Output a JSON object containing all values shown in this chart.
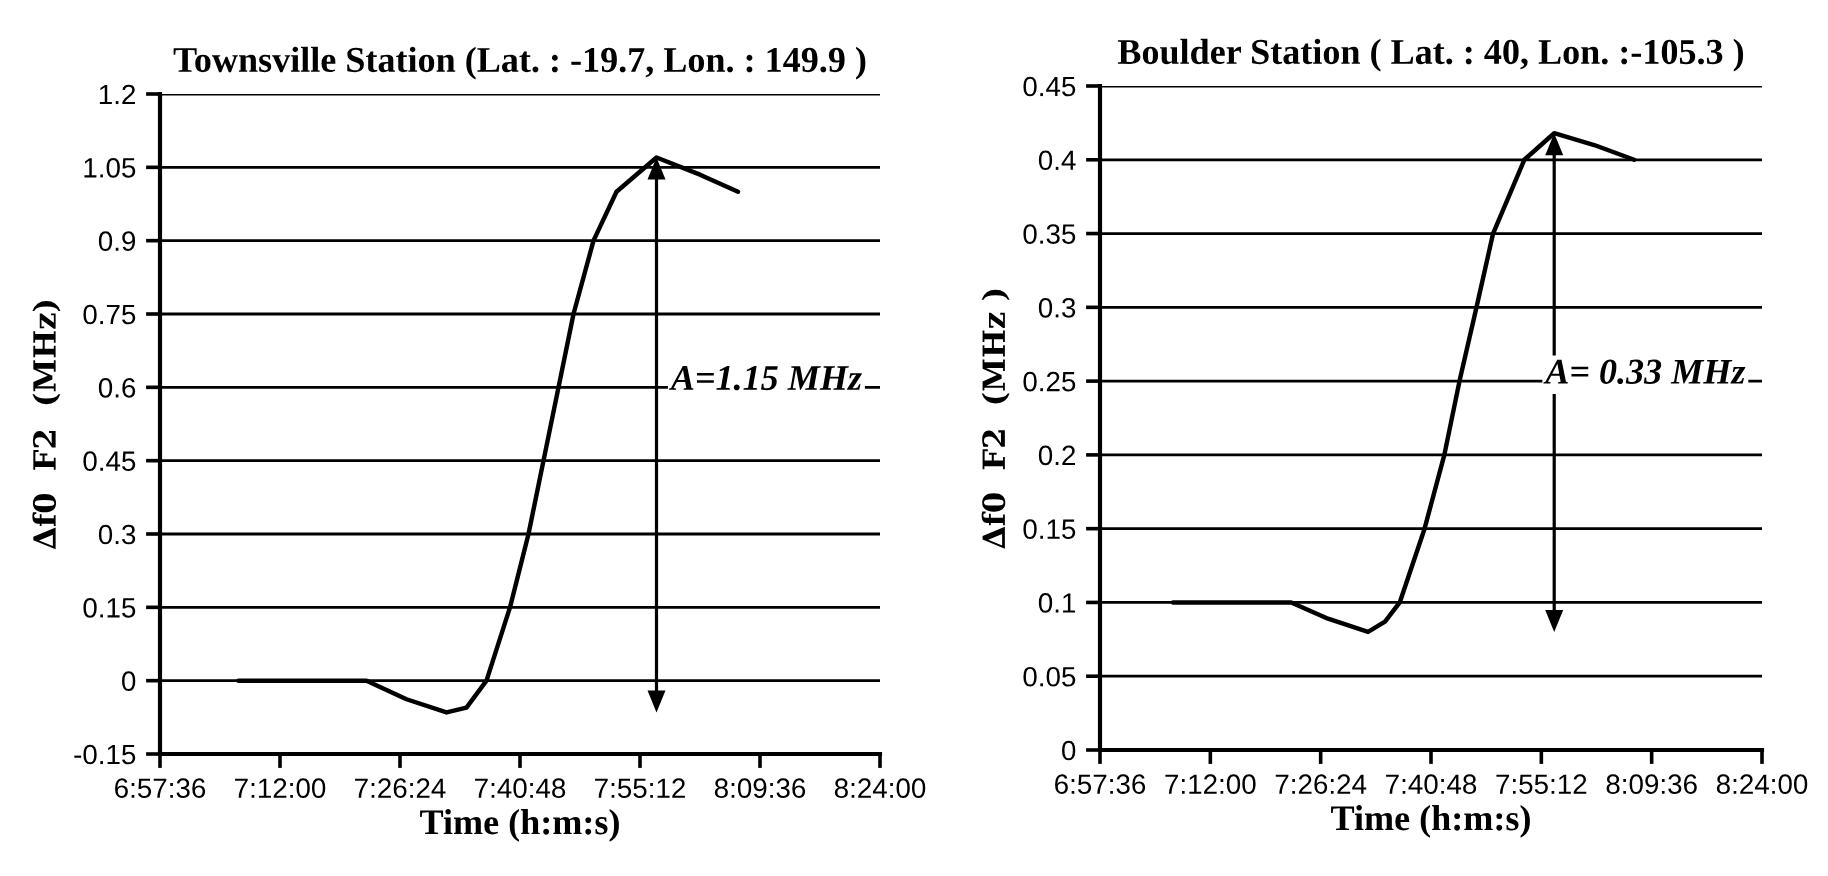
{
  "chart_data": [
    {
      "type": "line",
      "title": "Townsville Station (Lat. : -19.7, Lon. : 149.9 )",
      "xlabel": "Time (h:m:s)",
      "ylabel": "∆f0  F2  (MHz)",
      "series": [
        {
          "color": "#000000",
          "x": [
            7.117,
            7.25,
            7.373,
            7.453,
            7.533,
            7.573,
            7.613,
            7.66,
            7.697,
            7.727,
            7.757,
            7.787,
            7.827,
            7.873,
            7.953,
            8.04,
            8.116
          ],
          "values": [
            0,
            0,
            0,
            -0.038,
            -0.065,
            -0.055,
            0,
            0.15,
            0.3,
            0.45,
            0.6,
            0.75,
            0.9,
            1.0,
            1.07,
            1.035,
            1.0
          ]
        }
      ],
      "xlim": [
        6.96,
        8.4
      ],
      "xticks": [
        {
          "value": 6.96,
          "label": "6:57:36"
        },
        {
          "value": 7.2,
          "label": "7:12:00"
        },
        {
          "value": 7.44,
          "label": "7:26:24"
        },
        {
          "value": 7.68,
          "label": "7:40:48"
        },
        {
          "value": 7.92,
          "label": "7:55:12"
        },
        {
          "value": 8.16,
          "label": "8:09:36"
        },
        {
          "value": 8.4,
          "label": "8:24:00"
        }
      ],
      "ylim": [
        -0.15,
        1.2
      ],
      "yticks": [
        -0.15,
        0,
        0.15,
        0.3,
        0.45,
        0.6,
        0.75,
        0.9,
        1.05,
        1.2
      ],
      "grid": "y",
      "marker": "none",
      "line_style": "solid",
      "annotations": [
        "A=1.15 MHz"
      ]
    },
    {
      "type": "line",
      "title": "Boulder Station ( Lat. : 40, Lon. :-105.3 )",
      "xlabel": "Time (h:m:s)",
      "ylabel": "∆f0  F2  (MHz )",
      "series": [
        {
          "color": "#000000",
          "x": [
            7.119,
            7.25,
            7.376,
            7.456,
            7.543,
            7.58,
            7.612,
            7.666,
            7.709,
            7.742,
            7.779,
            7.815,
            7.883,
            7.948,
            8.035,
            8.122
          ],
          "values": [
            0.1,
            0.1,
            0.1,
            0.089,
            0.08,
            0.087,
            0.1,
            0.15,
            0.2,
            0.25,
            0.3,
            0.35,
            0.4,
            0.418,
            0.41,
            0.4
          ]
        }
      ],
      "xlim": [
        6.96,
        8.4
      ],
      "xticks": [
        {
          "value": 6.96,
          "label": "6:57:36"
        },
        {
          "value": 7.2,
          "label": "7:12:00"
        },
        {
          "value": 7.44,
          "label": "7:26:24"
        },
        {
          "value": 7.68,
          "label": "7:40:48"
        },
        {
          "value": 7.92,
          "label": "7:55:12"
        },
        {
          "value": 8.16,
          "label": "8:09:36"
        },
        {
          "value": 8.4,
          "label": "8:24:00"
        }
      ],
      "ylim": [
        0,
        0.45
      ],
      "yticks": [
        0,
        0.05,
        0.1,
        0.15,
        0.2,
        0.25,
        0.3,
        0.35,
        0.4,
        0.45
      ],
      "grid": "y",
      "marker": "none",
      "line_style": "solid",
      "annotations": [
        "A= 0.33 MHz"
      ]
    }
  ]
}
